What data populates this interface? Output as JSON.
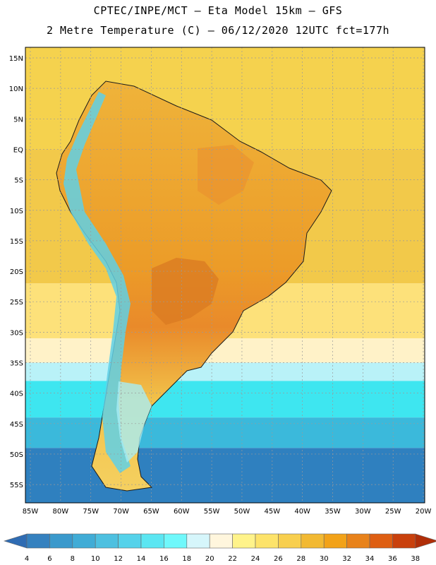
{
  "header": {
    "title_line1": "CPTEC/INPE/MCT –  Eta Model 15km – GFS",
    "title_line2": "2 Metre Temperature (C) – 06/12/2020 12UTC fct=177h"
  },
  "map": {
    "lat_labels": [
      "15N",
      "10N",
      "5N",
      "EQ",
      "5S",
      "10S",
      "15S",
      "20S",
      "25S",
      "30S",
      "35S",
      "40S",
      "45S",
      "50S",
      "55S"
    ],
    "lon_labels": [
      "85W",
      "80W",
      "75W",
      "70W",
      "65W",
      "60W",
      "55W",
      "50W",
      "45W",
      "40W",
      "35W",
      "30W",
      "25W",
      "20W"
    ],
    "ocean_bands": [
      {
        "lat_from": 17,
        "lat_to": 0,
        "color": "#f5d24e"
      },
      {
        "lat_from": 0,
        "lat_to": -22,
        "color": "#f2c94a"
      },
      {
        "lat_from": -22,
        "lat_to": -31,
        "color": "#fde17a"
      },
      {
        "lat_from": -31,
        "lat_to": -35,
        "color": "#fff2c8"
      },
      {
        "lat_from": -35,
        "lat_to": -38,
        "color": "#b9f2f8"
      },
      {
        "lat_from": -38,
        "lat_to": -44,
        "color": "#3ee6f0"
      },
      {
        "lat_from": -44,
        "lat_to": -49,
        "color": "#3bb9db"
      },
      {
        "lat_from": -49,
        "lat_to": -58,
        "color": "#2f80bf"
      }
    ]
  },
  "colorbar": {
    "ticks": [
      "4",
      "6",
      "8",
      "10",
      "12",
      "14",
      "16",
      "18",
      "20",
      "22",
      "24",
      "26",
      "28",
      "30",
      "32",
      "34",
      "36",
      "38"
    ],
    "colors": [
      "#2f6cb3",
      "#3581bf",
      "#3a99cc",
      "#40acd6",
      "#4dc0e0",
      "#55d2ea",
      "#5be6f2",
      "#6ff8fb",
      "#d6f6fb",
      "#fff6dd",
      "#fff38a",
      "#fde36a",
      "#f8cf4e",
      "#f2b932",
      "#f2a218",
      "#e8821a",
      "#de5e12",
      "#c9400c",
      "#b02e08"
    ]
  }
}
